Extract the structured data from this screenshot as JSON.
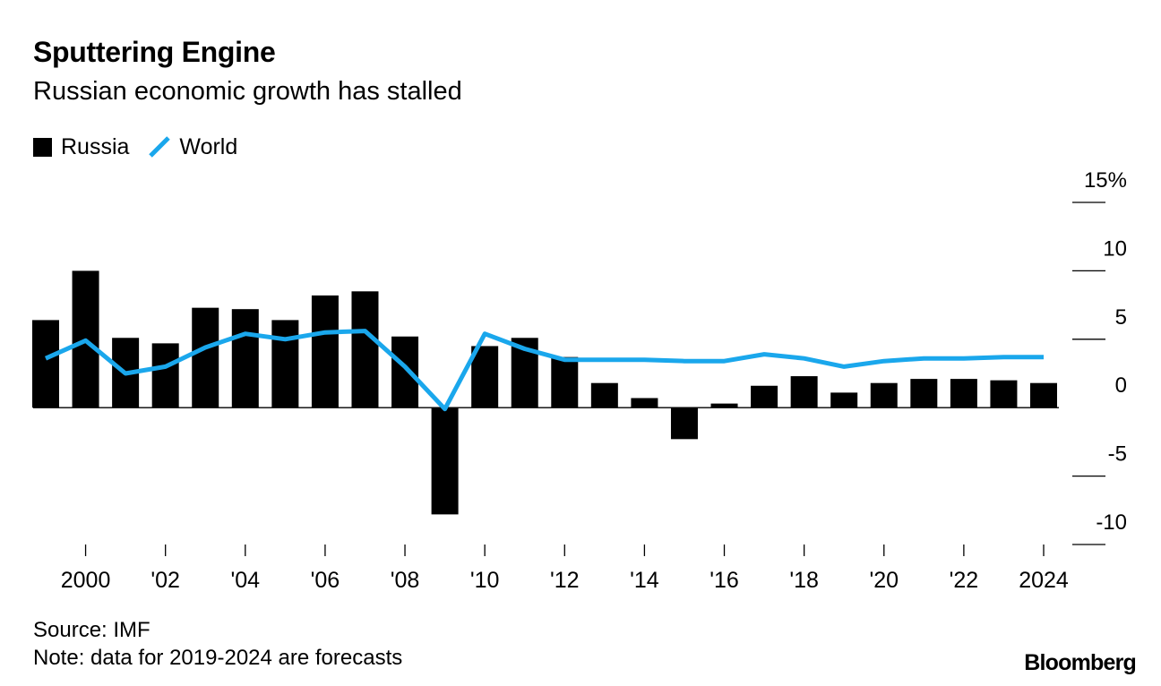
{
  "header": {
    "title": "Sputtering Engine",
    "subtitle": "Russian economic growth has stalled"
  },
  "legend": {
    "russia_label": "Russia",
    "world_label": "World"
  },
  "footer": {
    "source": "Source: IMF",
    "note": "Note: data for 2019-2024 are forecasts",
    "brand": "Bloomberg"
  },
  "colors": {
    "russia": "#000000",
    "world": "#1aa7ec",
    "axis": "#000000"
  },
  "chart_data": {
    "type": "bar",
    "title": "Sputtering Engine",
    "subtitle": "Russian economic growth has stalled",
    "xlabel": "",
    "ylabel": "",
    "ylim": [
      -10,
      15
    ],
    "y_ticks": [
      15,
      10,
      5,
      0,
      -5,
      -10
    ],
    "y_tick_labels": [
      "15%",
      "10",
      "5",
      "0",
      "-5",
      "-10"
    ],
    "x": [
      1999,
      2000,
      2001,
      2002,
      2003,
      2004,
      2005,
      2006,
      2007,
      2008,
      2009,
      2010,
      2011,
      2012,
      2013,
      2014,
      2015,
      2016,
      2017,
      2018,
      2019,
      2020,
      2021,
      2022,
      2023,
      2024
    ],
    "x_ticks": [
      2000,
      2002,
      2004,
      2006,
      2008,
      2010,
      2012,
      2014,
      2016,
      2018,
      2020,
      2022,
      2024
    ],
    "x_tick_labels": [
      "2000",
      "'02",
      "'04",
      "'06",
      "'08",
      "'10",
      "'12",
      "'14",
      "'16",
      "'18",
      "'20",
      "'22",
      "2024"
    ],
    "legend_position": "top-left",
    "series": [
      {
        "name": "Russia",
        "type": "bar",
        "values": [
          6.4,
          10.0,
          5.1,
          4.7,
          7.3,
          7.2,
          6.4,
          8.2,
          8.5,
          5.2,
          -7.8,
          4.5,
          5.1,
          3.7,
          1.8,
          0.7,
          -2.3,
          0.3,
          1.6,
          2.3,
          1.1,
          1.8,
          2.1,
          2.1,
          2.0,
          1.8
        ]
      },
      {
        "name": "World",
        "type": "line",
        "values": [
          3.6,
          4.9,
          2.5,
          3.0,
          4.4,
          5.4,
          5.0,
          5.5,
          5.6,
          3.0,
          -0.1,
          5.4,
          4.3,
          3.5,
          3.5,
          3.5,
          3.4,
          3.4,
          3.9,
          3.6,
          3.0,
          3.4,
          3.6,
          3.6,
          3.7,
          3.7
        ]
      }
    ]
  }
}
